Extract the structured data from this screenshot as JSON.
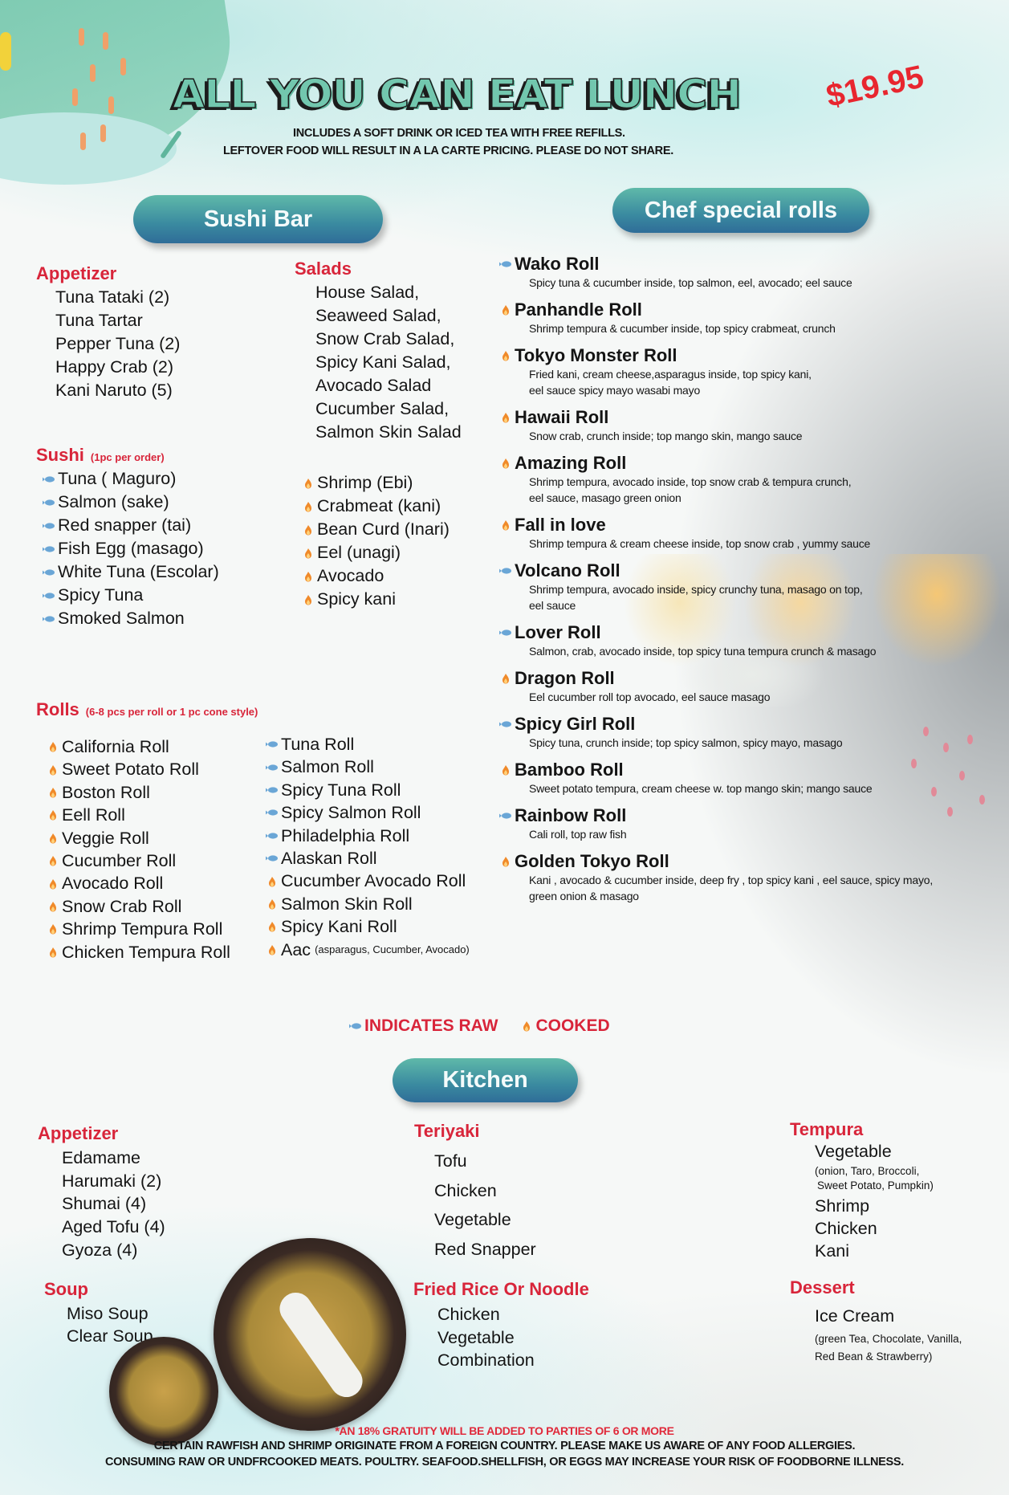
{
  "colors": {
    "accent_red": "#d8253a",
    "price_red": "#e8262f",
    "title_teal": "#72c7ae",
    "pill_top": "#5fb9a9",
    "pill_bottom": "#2f6d98",
    "raw_icon": "#6aa6d6",
    "cooked_icon": "#f08a2a"
  },
  "header": {
    "title": "ALL YOU CAN EAT LUNCH",
    "price": "$19.95",
    "notes": [
      "INCLUDES A SOFT DRINK OR ICED TEA WITH FREE REFILLS.",
      "LEFTOVER FOOD WILL RESULT IN A LA CARTE PRICING. PLEASE DO NOT SHARE."
    ]
  },
  "sections": {
    "sushi_bar": "Sushi Bar",
    "chef_special": "Chef special rolls",
    "kitchen": "Kitchen"
  },
  "sushi_bar": {
    "appetizer": {
      "heading": "Appetizer",
      "items": [
        "Tuna Tataki (2)",
        "Tuna Tartar",
        "Pepper Tuna (2)",
        "Happy Crab (2)",
        "Kani Naruto (5)"
      ]
    },
    "salads": {
      "heading": "Salads",
      "items": [
        "House Salad,",
        "Seaweed Salad,",
        "Snow Crab Salad,",
        "Spicy Kani Salad,",
        "Avocado Salad",
        "Cucumber Salad,",
        "Salmon Skin Salad"
      ]
    },
    "sushi": {
      "heading": "Sushi",
      "note": "(1pc per order)",
      "raw_items": [
        "Tuna ( Maguro)",
        "Salmon (sake)",
        "Red snapper (tai)",
        "Fish Egg (masago)",
        "White Tuna (Escolar)",
        "Spicy Tuna",
        "Smoked Salmon"
      ],
      "cooked_items": [
        "Shrimp (Ebi)",
        "Crabmeat (kani)",
        "Bean Curd (Inari)",
        "Eel (unagi)",
        "Avocado",
        "Spicy kani"
      ]
    },
    "rolls": {
      "heading": "Rolls",
      "note": "(6-8 pcs per roll or 1 pc cone style)",
      "col1": [
        {
          "name": "California Roll",
          "type": "cooked"
        },
        {
          "name": "Sweet Potato Roll",
          "type": "cooked"
        },
        {
          "name": "Boston Roll",
          "type": "cooked"
        },
        {
          "name": "Eell Roll",
          "type": "cooked"
        },
        {
          "name": "Veggie Roll",
          "type": "cooked"
        },
        {
          "name": "Cucumber Roll",
          "type": "cooked"
        },
        {
          "name": "Avocado Roll",
          "type": "cooked"
        },
        {
          "name": "Snow Crab Roll",
          "type": "cooked"
        },
        {
          "name": "Shrimp Tempura Roll",
          "type": "cooked"
        },
        {
          "name": "Chicken Tempura Roll",
          "type": "cooked"
        }
      ],
      "col2": [
        {
          "name": "Tuna Roll",
          "type": "raw"
        },
        {
          "name": "Salmon Roll",
          "type": "raw"
        },
        {
          "name": "Spicy Tuna Roll",
          "type": "raw"
        },
        {
          "name": "Spicy Salmon Roll",
          "type": "raw"
        },
        {
          "name": "Philadelphia Roll",
          "type": "raw"
        },
        {
          "name": "Alaskan Roll",
          "type": "raw"
        },
        {
          "name": "Cucumber Avocado Roll",
          "type": "cooked"
        },
        {
          "name": "Salmon Skin Roll",
          "type": "cooked"
        },
        {
          "name": "Spicy Kani Roll",
          "type": "cooked"
        },
        {
          "name": "Aac",
          "note": "(asparagus, Cucumber, Avocado)",
          "type": "cooked"
        }
      ]
    }
  },
  "chef_rolls": [
    {
      "name": "Wako Roll",
      "type": "raw",
      "desc": [
        "Spicy tuna & cucumber inside, top salmon, eel, avocado; eel sauce"
      ]
    },
    {
      "name": "Panhandle Roll",
      "type": "cooked",
      "desc": [
        "Shrimp tempura & cucumber inside, top spicy crabmeat, crunch"
      ]
    },
    {
      "name": "Tokyo Monster Roll",
      "type": "cooked",
      "desc": [
        "Fried kani, cream cheese,asparagus inside, top spicy kani,",
        "eel sauce spicy mayo wasabi mayo"
      ]
    },
    {
      "name": "Hawaii Roll",
      "type": "cooked",
      "desc": [
        "Snow crab, crunch inside; top mango skin, mango sauce"
      ]
    },
    {
      "name": "Amazing Roll",
      "type": "cooked",
      "desc": [
        "Shrimp tempura, avocado inside, top snow crab & tempura crunch,",
        "eel sauce, masago green onion"
      ]
    },
    {
      "name": "Fall in love",
      "type": "cooked",
      "desc": [
        "Shrimp tempura & cream cheese inside, top snow crab , yummy   sauce"
      ]
    },
    {
      "name": "Volcano Roll",
      "type": "raw",
      "desc": [
        "Shrimp tempura, avocado inside, spicy crunchy tuna, masago on top,",
        "eel sauce"
      ]
    },
    {
      "name": "Lover Roll",
      "type": "raw",
      "desc": [
        "Salmon, crab, avocado inside, top spicy tuna tempura crunch & masago"
      ]
    },
    {
      "name": "Dragon Roll",
      "type": "cooked",
      "desc": [
        "Eel cucumber roll top avocado, eel sauce masago"
      ]
    },
    {
      "name": "Spicy Girl Roll",
      "type": "raw",
      "desc": [
        "Spicy tuna, crunch inside; top spicy salmon, spicy mayo, masago"
      ]
    },
    {
      "name": "Bamboo Roll",
      "type": "cooked",
      "desc": [
        "Sweet potato tempura, cream cheese w. top mango skin; mango sauce"
      ]
    },
    {
      "name": "Rainbow Roll",
      "type": "raw",
      "desc": [
        "Cali roll, top raw fish"
      ]
    },
    {
      "name": "Golden Tokyo Roll",
      "type": "cooked",
      "desc": [
        "Kani , avocado & cucumber inside, deep fry ,  top spicy kani , eel sauce, spicy mayo,",
        "green onion & masago"
      ]
    }
  ],
  "legend": {
    "raw": "INDICATES RAW",
    "cooked": "COOKED"
  },
  "kitchen": {
    "appetizer": {
      "heading": "Appetizer",
      "items": [
        "Edamame",
        "Harumaki (2)",
        "Shumai (4)",
        "Aged Tofu (4)",
        "Gyoza (4)"
      ]
    },
    "teriyaki": {
      "heading": "Teriyaki",
      "items": [
        "Tofu",
        "Chicken",
        "Vegetable",
        "Red Snapper"
      ]
    },
    "tempura": {
      "heading": "Tempura",
      "vegetable": "Vegetable",
      "vegetable_note": [
        "(onion,  Taro,  Broccoli,",
        "Sweet Potato, Pumpkin)"
      ],
      "items": [
        "Shrimp",
        "Chicken",
        "Kani"
      ]
    },
    "soup": {
      "heading": "Soup",
      "items": [
        "Miso Soup",
        "Clear Soup"
      ]
    },
    "fried_rice": {
      "heading": "Fried Rice Or Noodle",
      "items": [
        "Chicken",
        "Vegetable",
        "Combination"
      ]
    },
    "dessert": {
      "heading": "Dessert",
      "item": "Ice Cream",
      "note": [
        "(green Tea, Chocolate, Vanilla,",
        "Red Bean & Strawberry)"
      ]
    }
  },
  "footer": {
    "gratuity": "*AN 18% GRATUITY WILL BE ADDED TO PARTIES OF 6 OR MORE",
    "lines": [
      "CERTAIN RAWFISH AND SHRIMP ORIGINATE FROM A FOREIGN COUNTRY. PLEASE MAKE US AWARE OF ANY FOOD ALLERGIES.",
      "CONSUMING RAW OR UNDFRCOOKED MEATS. POULTRY. SEAFOOD.SHELLFISH, OR EGGS MAY INCREASE YOUR RISK OF FOODBORNE ILLNESS."
    ]
  }
}
